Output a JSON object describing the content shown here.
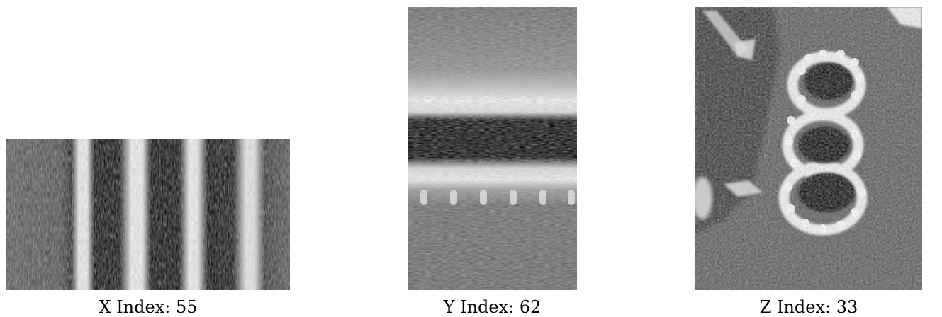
{
  "panels": {
    "x": {
      "caption": "X Index: 55"
    },
    "y": {
      "caption": "Y Index: 62"
    },
    "z": {
      "caption": "Z Index: 33"
    }
  },
  "colors": {
    "background": "#ffffff",
    "dark": "#0a0a0a",
    "mid_gray": "#6e6e6e",
    "bright": "#f2f2f2"
  }
}
